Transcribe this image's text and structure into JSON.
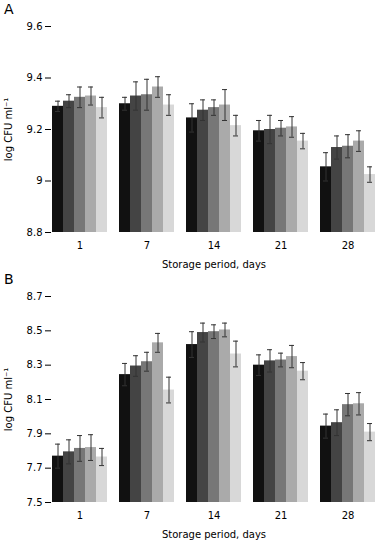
{
  "chart_data": [
    {
      "type": "bar",
      "title": "A",
      "xlabel": "Storage period, days",
      "ylabel": "log CFU ml⁻¹",
      "categories": [
        "1",
        "7",
        "14",
        "21",
        "28"
      ],
      "series": [
        {
          "color": "#111111",
          "values": [
            9.29,
            9.3,
            9.245,
            9.195,
            9.055
          ],
          "errors": [
            0.02,
            0.025,
            0.055,
            0.04,
            0.055
          ]
        },
        {
          "color": "#444444",
          "values": [
            9.31,
            9.33,
            9.275,
            9.2,
            9.13
          ],
          "errors": [
            0.025,
            0.055,
            0.04,
            0.055,
            0.045
          ]
        },
        {
          "color": "#777777",
          "values": [
            9.325,
            9.335,
            9.285,
            9.205,
            9.135
          ],
          "errors": [
            0.04,
            0.06,
            0.03,
            0.03,
            0.045
          ]
        },
        {
          "color": "#aaaaaa",
          "values": [
            9.33,
            9.365,
            9.295,
            9.21,
            9.155
          ],
          "errors": [
            0.035,
            0.04,
            0.06,
            0.04,
            0.04
          ]
        },
        {
          "color": "#d8d8d8",
          "values": [
            9.285,
            9.295,
            9.215,
            9.155,
            9.025
          ],
          "errors": [
            0.04,
            0.04,
            0.04,
            0.03,
            0.03
          ]
        }
      ],
      "ylim": [
        8.8,
        9.6
      ],
      "yticks": [
        8.8,
        9,
        9.2,
        9.4,
        9.6
      ],
      "grid": false
    },
    {
      "type": "bar",
      "title": "B",
      "xlabel": "Storage period, days",
      "ylabel": "log CFU ml⁻¹",
      "categories": [
        "1",
        "7",
        "14",
        "21",
        "28"
      ],
      "series": [
        {
          "color": "#111111",
          "values": [
            7.77,
            8.245,
            8.42,
            8.3,
            7.945
          ],
          "errors": [
            0.07,
            0.065,
            0.075,
            0.06,
            0.07
          ]
        },
        {
          "color": "#444444",
          "values": [
            7.795,
            8.295,
            8.49,
            8.325,
            7.965
          ],
          "errors": [
            0.07,
            0.06,
            0.055,
            0.065,
            0.075
          ]
        },
        {
          "color": "#777777",
          "values": [
            7.815,
            8.32,
            8.495,
            8.33,
            8.07
          ],
          "errors": [
            0.075,
            0.055,
            0.04,
            0.04,
            0.065
          ]
        },
        {
          "color": "#aaaaaa",
          "values": [
            7.82,
            8.43,
            8.505,
            8.35,
            8.075
          ],
          "errors": [
            0.075,
            0.055,
            0.04,
            0.065,
            0.065
          ]
        },
        {
          "color": "#d8d8d8",
          "values": [
            7.765,
            8.155,
            8.365,
            8.265,
            7.91
          ],
          "errors": [
            0.05,
            0.075,
            0.075,
            0.05,
            0.05
          ]
        }
      ],
      "ylim": [
        7.5,
        8.7
      ],
      "yticks": [
        7.5,
        7.7,
        7.9,
        8.1,
        8.3,
        8.5,
        8.7
      ],
      "grid": false
    }
  ]
}
